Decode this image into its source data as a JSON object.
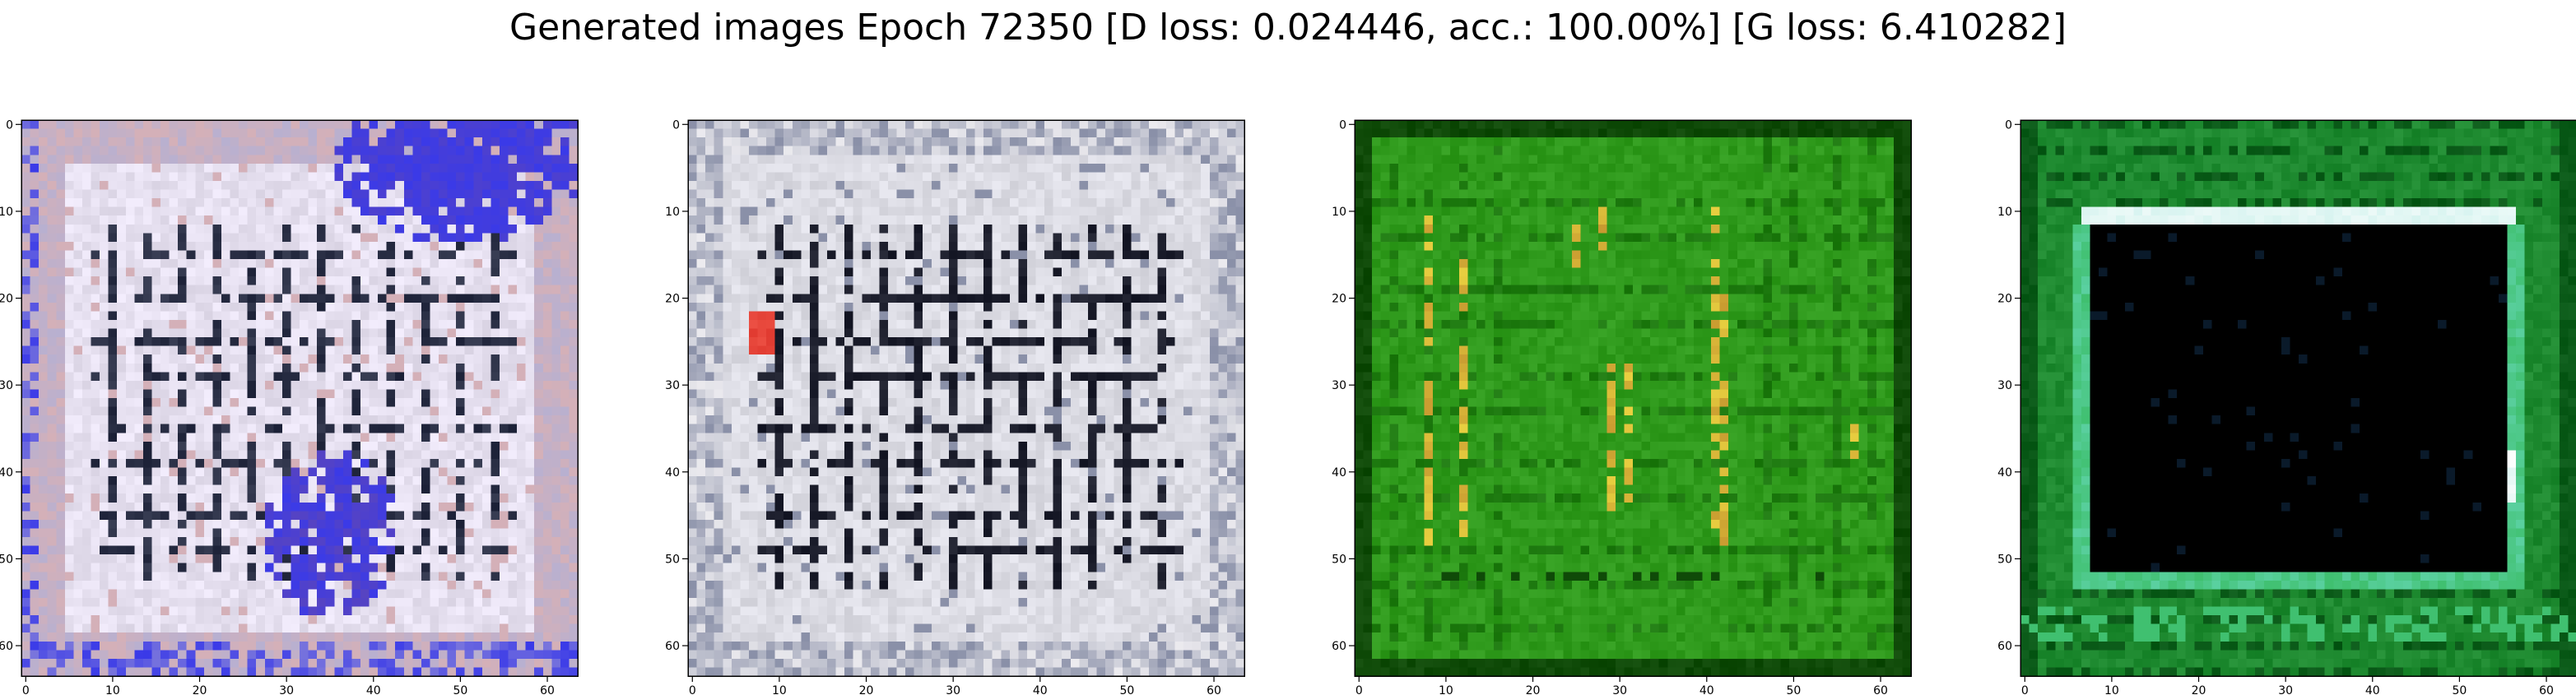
{
  "figure": {
    "title": "Generated images Epoch 72350 [D loss: 0.024446, acc.: 100.00%] [G loss: 6.410282]"
  },
  "chart_data": [
    {
      "type": "heatmap",
      "name": "generated-image-1",
      "description": "64x64 RGB generated sample: light lavender/white grid pattern with dark vertical and horizontal bars, strong blue patches at top-right and lower-middle",
      "xlim": [
        0,
        63
      ],
      "ylim": [
        63,
        0
      ],
      "xticks": [
        0,
        10,
        20,
        30,
        40,
        50,
        60
      ],
      "yticks": [
        0,
        10,
        20,
        30,
        40,
        50,
        60
      ],
      "xlabel": "",
      "ylabel": "",
      "grid": false,
      "palette": [
        "#e6e0f0",
        "#cfc9dd",
        "#2a2f45",
        "#3a3ae8",
        "#6a4aa8",
        "#b8b0d0",
        "#d4b0b8"
      ]
    },
    {
      "type": "heatmap",
      "name": "generated-image-2",
      "description": "64x64 RGB generated sample: light grey/white grid with dark vertical and horizontal bars, small red patch at left around row 24",
      "xlim": [
        0,
        63
      ],
      "ylim": [
        63,
        0
      ],
      "xticks": [
        0,
        10,
        20,
        30,
        40,
        50,
        60
      ],
      "yticks": [
        0,
        10,
        20,
        30,
        40,
        50,
        60
      ],
      "xlabel": "",
      "ylabel": "",
      "grid": false,
      "palette": [
        "#dcdce4",
        "#c4c6d2",
        "#1c1e2c",
        "#e03a30",
        "#8a90a8",
        "#ecebef"
      ]
    },
    {
      "type": "heatmap",
      "name": "generated-image-3",
      "description": "64x64 RGB generated sample: green background with darker green grid lines and yellow/orange vertical streaks",
      "xlim": [
        0,
        63
      ],
      "ylim": [
        63,
        0
      ],
      "xticks": [
        0,
        10,
        20,
        30,
        40,
        50,
        60
      ],
      "yticks": [
        0,
        10,
        20,
        30,
        40,
        50,
        60
      ],
      "xlabel": "",
      "ylabel": "",
      "grid": false,
      "palette": [
        "#2f9a1c",
        "#1e7a10",
        "#0f4a08",
        "#e8d040",
        "#c89a30",
        "#45b030"
      ]
    },
    {
      "type": "heatmap",
      "name": "generated-image-4",
      "description": "64x64 RGB generated sample: green frame with light cyan/white top edge and a large black rectangle in the center",
      "xlim": [
        0,
        63
      ],
      "ylim": [
        63,
        0
      ],
      "xticks": [
        0,
        10,
        20,
        30,
        40,
        50,
        60
      ],
      "yticks": [
        0,
        10,
        20,
        30,
        40,
        50,
        60
      ],
      "xlabel": "",
      "ylabel": "",
      "grid": false,
      "palette": [
        "#1e8a30",
        "#0a5a18",
        "#40c070",
        "#d8f4f0",
        "#000000",
        "#5ad0a0"
      ]
    }
  ]
}
